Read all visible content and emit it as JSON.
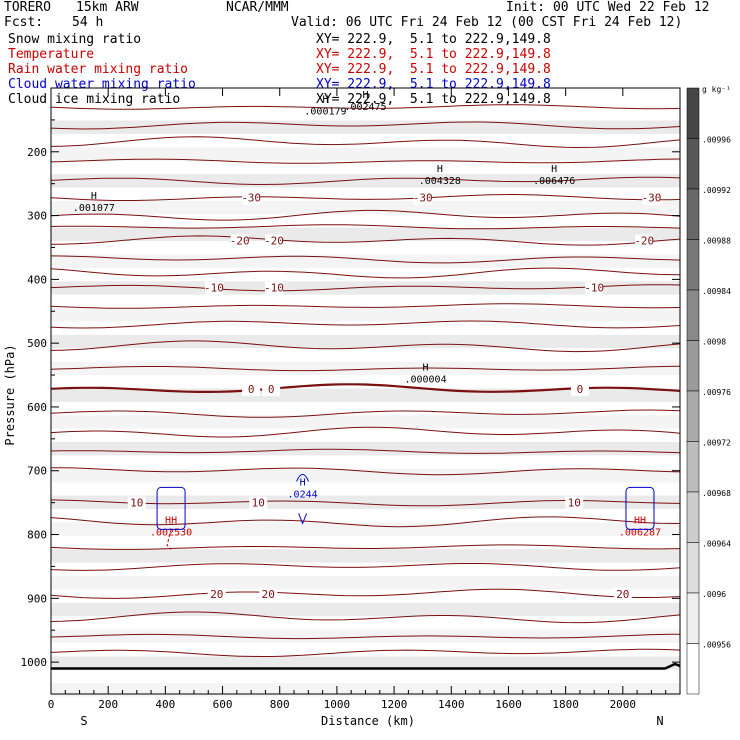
{
  "header": {
    "model": "TORERO",
    "resolution": "15km ARW",
    "center": "NCAR/MMM",
    "init": "Init: 00 UTC Wed 22 Feb 12",
    "fcst_label": "Fcst:",
    "fcst_value": "54 h",
    "valid": "Valid: 06 UTC Fri 24 Feb 12 (00 CST Fri 24 Feb 12)"
  },
  "legend": [
    {
      "name": "Snow mixing ratio",
      "xy": "XY= 222.9,  5.1 to 222.9,149.8",
      "color": "#000000"
    },
    {
      "name": "Temperature",
      "xy": "XY= 222.9,  5.1 to 222.9,149.8",
      "color": "#cc0000"
    },
    {
      "name": "Rain water mixing ratio",
      "xy": "XY= 222.9,  5.1 to 222.9,149.8",
      "color": "#cc0000"
    },
    {
      "name": "Cloud water mixing ratio",
      "xy": "XY= 222.9,  5.1 to 222.9,149.8",
      "color": "#0000cc"
    },
    {
      "name": "Cloud ice mixing ratio",
      "xy": "XY= 222.9,  5.1 to 222.9,149.8",
      "color": "#000000"
    }
  ],
  "chart_data": {
    "type": "contour-cross-section",
    "xlabel": "Distance (km)",
    "ylabel": "Pressure (hPa)",
    "xlim": [
      0,
      2200
    ],
    "ylim": [
      1050,
      100
    ],
    "x_ticks": [
      0,
      200,
      400,
      600,
      800,
      1000,
      1200,
      1400,
      1600,
      1800,
      2000
    ],
    "y_ticks": [
      200,
      300,
      400,
      500,
      600,
      700,
      800,
      900,
      1000
    ],
    "endpoint_left": "S",
    "endpoint_right": "N",
    "colorbar": {
      "unit": "g kg⁻¹",
      "ticks": [
        ".00996",
        ".00992",
        ".00988",
        ".00984",
        ".0098",
        ".00976",
        ".00972",
        ".00968",
        ".00964",
        ".0096",
        ".00956"
      ]
    },
    "isotherms": [
      {
        "value": -30,
        "p": 272,
        "labels_km": [
          700,
          1300,
          2100
        ]
      },
      {
        "value": -20,
        "p": 339,
        "labels_km": [
          660,
          780,
          2075
        ]
      },
      {
        "value": -10,
        "p": 413,
        "labels_km": [
          570,
          780,
          1900
        ]
      },
      {
        "value": 0,
        "p": 572,
        "labels_km": [
          700,
          770,
          1850
        ]
      },
      {
        "value": 10,
        "p": 750,
        "labels_km": [
          300,
          725,
          1830
        ]
      },
      {
        "value": 20,
        "p": 893,
        "labels_km": [
          580,
          760,
          2000
        ]
      }
    ],
    "extrema": [
      {
        "mark": "H",
        "value": ".004328",
        "x_km": 1360,
        "p": 232,
        "color": "#000000"
      },
      {
        "mark": "H",
        "value": ".006476",
        "x_km": 1760,
        "p": 232,
        "color": "#000000"
      },
      {
        "mark": "H",
        "value": ".001077",
        "x_km": 150,
        "p": 274,
        "color": "#000000"
      },
      {
        "mark": "H",
        "value": ".000004",
        "x_km": 1310,
        "p": 543,
        "color": "#000000"
      },
      {
        "mark": "H",
        "value": ".000179",
        "x_km": 960,
        "p": 123,
        "color": "#000000"
      },
      {
        "mark": "H",
        "value": ".002475",
        "x_km": 1100,
        "p": 116,
        "color": "#000000"
      },
      {
        "mark": "H",
        "value": ".0244",
        "x_km": 880,
        "p": 723,
        "color": "#0000cc"
      },
      {
        "mark": "HH",
        "value": ".002530",
        "x_km": 420,
        "p": 783,
        "color": "#cc0000"
      },
      {
        "mark": "HH",
        "value": ".006287",
        "x_km": 2060,
        "p": 783,
        "color": "#cc0000"
      }
    ]
  }
}
